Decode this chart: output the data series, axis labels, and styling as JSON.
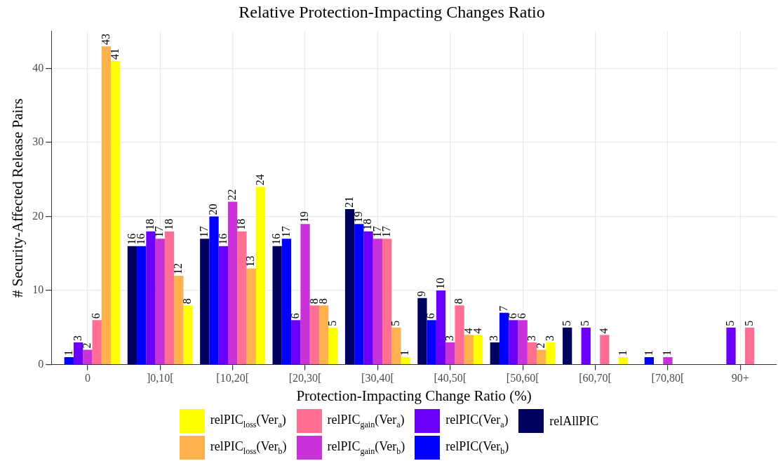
{
  "chart_data": {
    "type": "bar",
    "title": "Relative Protection-Impacting Changes Ratio",
    "xlabel": "Protection-Impacting Change Ratio (%)",
    "ylabel": "# Security-Affected Release Pairs",
    "categories": [
      "0",
      "]0,10[",
      "[10,20[",
      "[20,30[",
      "[30,40[",
      "[40,50[",
      "[50,60[",
      "[60,70[",
      "[70,80[",
      "90+"
    ],
    "series": [
      {
        "name": "relAllPIC",
        "color": "#00005f",
        "values": [
          null,
          16,
          17,
          16,
          21,
          9,
          3,
          5,
          null,
          null
        ]
      },
      {
        "name": "relPIC(Ver$_{b}$)",
        "color": "#0000ff",
        "values": [
          1,
          16,
          20,
          17,
          19,
          6,
          7,
          null,
          1,
          null
        ]
      },
      {
        "name": "relPIC(Ver$_{a}$)",
        "color": "#6a00fc",
        "values": [
          3,
          18,
          16,
          6,
          18,
          10,
          6,
          5,
          null,
          5
        ]
      },
      {
        "name": "relPIC$_{gain}$(Ver$_{b}$)",
        "color": "#c832d8",
        "values": [
          2,
          17,
          22,
          19,
          17,
          3,
          6,
          null,
          1,
          null
        ]
      },
      {
        "name": "relPIC$_{gain}$(Ver$_{a}$)",
        "color": "#ff6e93",
        "values": [
          6,
          18,
          18,
          8,
          17,
          8,
          3,
          4,
          null,
          5
        ]
      },
      {
        "name": "relPIC$_{loss}$(Ver$_{b}$)",
        "color": "#ffb14e",
        "values": [
          43,
          12,
          13,
          8,
          5,
          4,
          2,
          null,
          null,
          null
        ]
      },
      {
        "name": "relPIC$_{loss}$(Ver$_{a}$)",
        "color": "#ffff00",
        "values": [
          41,
          8,
          24,
          5,
          1,
          4,
          3,
          1,
          null,
          null
        ]
      }
    ],
    "ylim": [
      0,
      45
    ],
    "yticks": [
      0,
      10,
      20,
      30,
      40
    ],
    "grid": true,
    "legend": "bottom",
    "data_labels": true
  }
}
